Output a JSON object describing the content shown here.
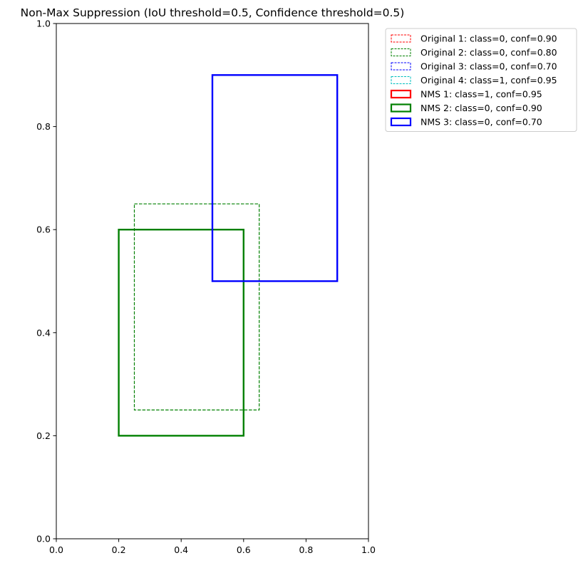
{
  "chart_data": {
    "type": "rectangles",
    "title": "Non-Max Suppression (IoU threshold=0.5, Confidence threshold=0.5)",
    "xlabel": "",
    "ylabel": "",
    "xlim": [
      0,
      1
    ],
    "ylim": [
      0,
      1
    ],
    "xticks": [
      0.0,
      0.2,
      0.4,
      0.6,
      0.8,
      1.0
    ],
    "yticks": [
      0.0,
      0.2,
      0.4,
      0.6,
      0.8,
      1.0
    ],
    "xtick_labels": [
      "0.0",
      "0.2",
      "0.4",
      "0.6",
      "0.8",
      "1.0"
    ],
    "ytick_labels": [
      "0.0",
      "0.2",
      "0.4",
      "0.6",
      "0.8",
      "1.0"
    ],
    "grid": false,
    "legend_position": "outside-top-right",
    "boxes": [
      {
        "label": "Original 1: class=0, conf=0.90",
        "color": "#ff0000",
        "style": "dashed",
        "x1": null,
        "y1": null,
        "x2": null,
        "y2": null
      },
      {
        "label": "Original 2: class=0, conf=0.80",
        "color": "#008000",
        "style": "dashed",
        "x1": 0.25,
        "y1": 0.25,
        "x2": 0.65,
        "y2": 0.65
      },
      {
        "label": "Original 3: class=0, conf=0.70",
        "color": "#0000ff",
        "style": "dashed",
        "x1": null,
        "y1": null,
        "x2": null,
        "y2": null
      },
      {
        "label": "Original 4: class=1, conf=0.95",
        "color": "#00bfbf",
        "style": "dashed",
        "x1": null,
        "y1": null,
        "x2": null,
        "y2": null
      },
      {
        "label": "NMS 1: class=1, conf=0.95",
        "color": "#ff0000",
        "style": "solid",
        "x1": null,
        "y1": null,
        "x2": null,
        "y2": null
      },
      {
        "label": "NMS 2: class=0, conf=0.90",
        "color": "#008000",
        "style": "solid",
        "x1": 0.2,
        "y1": 0.2,
        "x2": 0.6,
        "y2": 0.6
      },
      {
        "label": "NMS 3: class=0, conf=0.70",
        "color": "#0000ff",
        "style": "solid",
        "x1": 0.5,
        "y1": 0.5,
        "x2": 0.9,
        "y2": 0.9
      }
    ]
  }
}
